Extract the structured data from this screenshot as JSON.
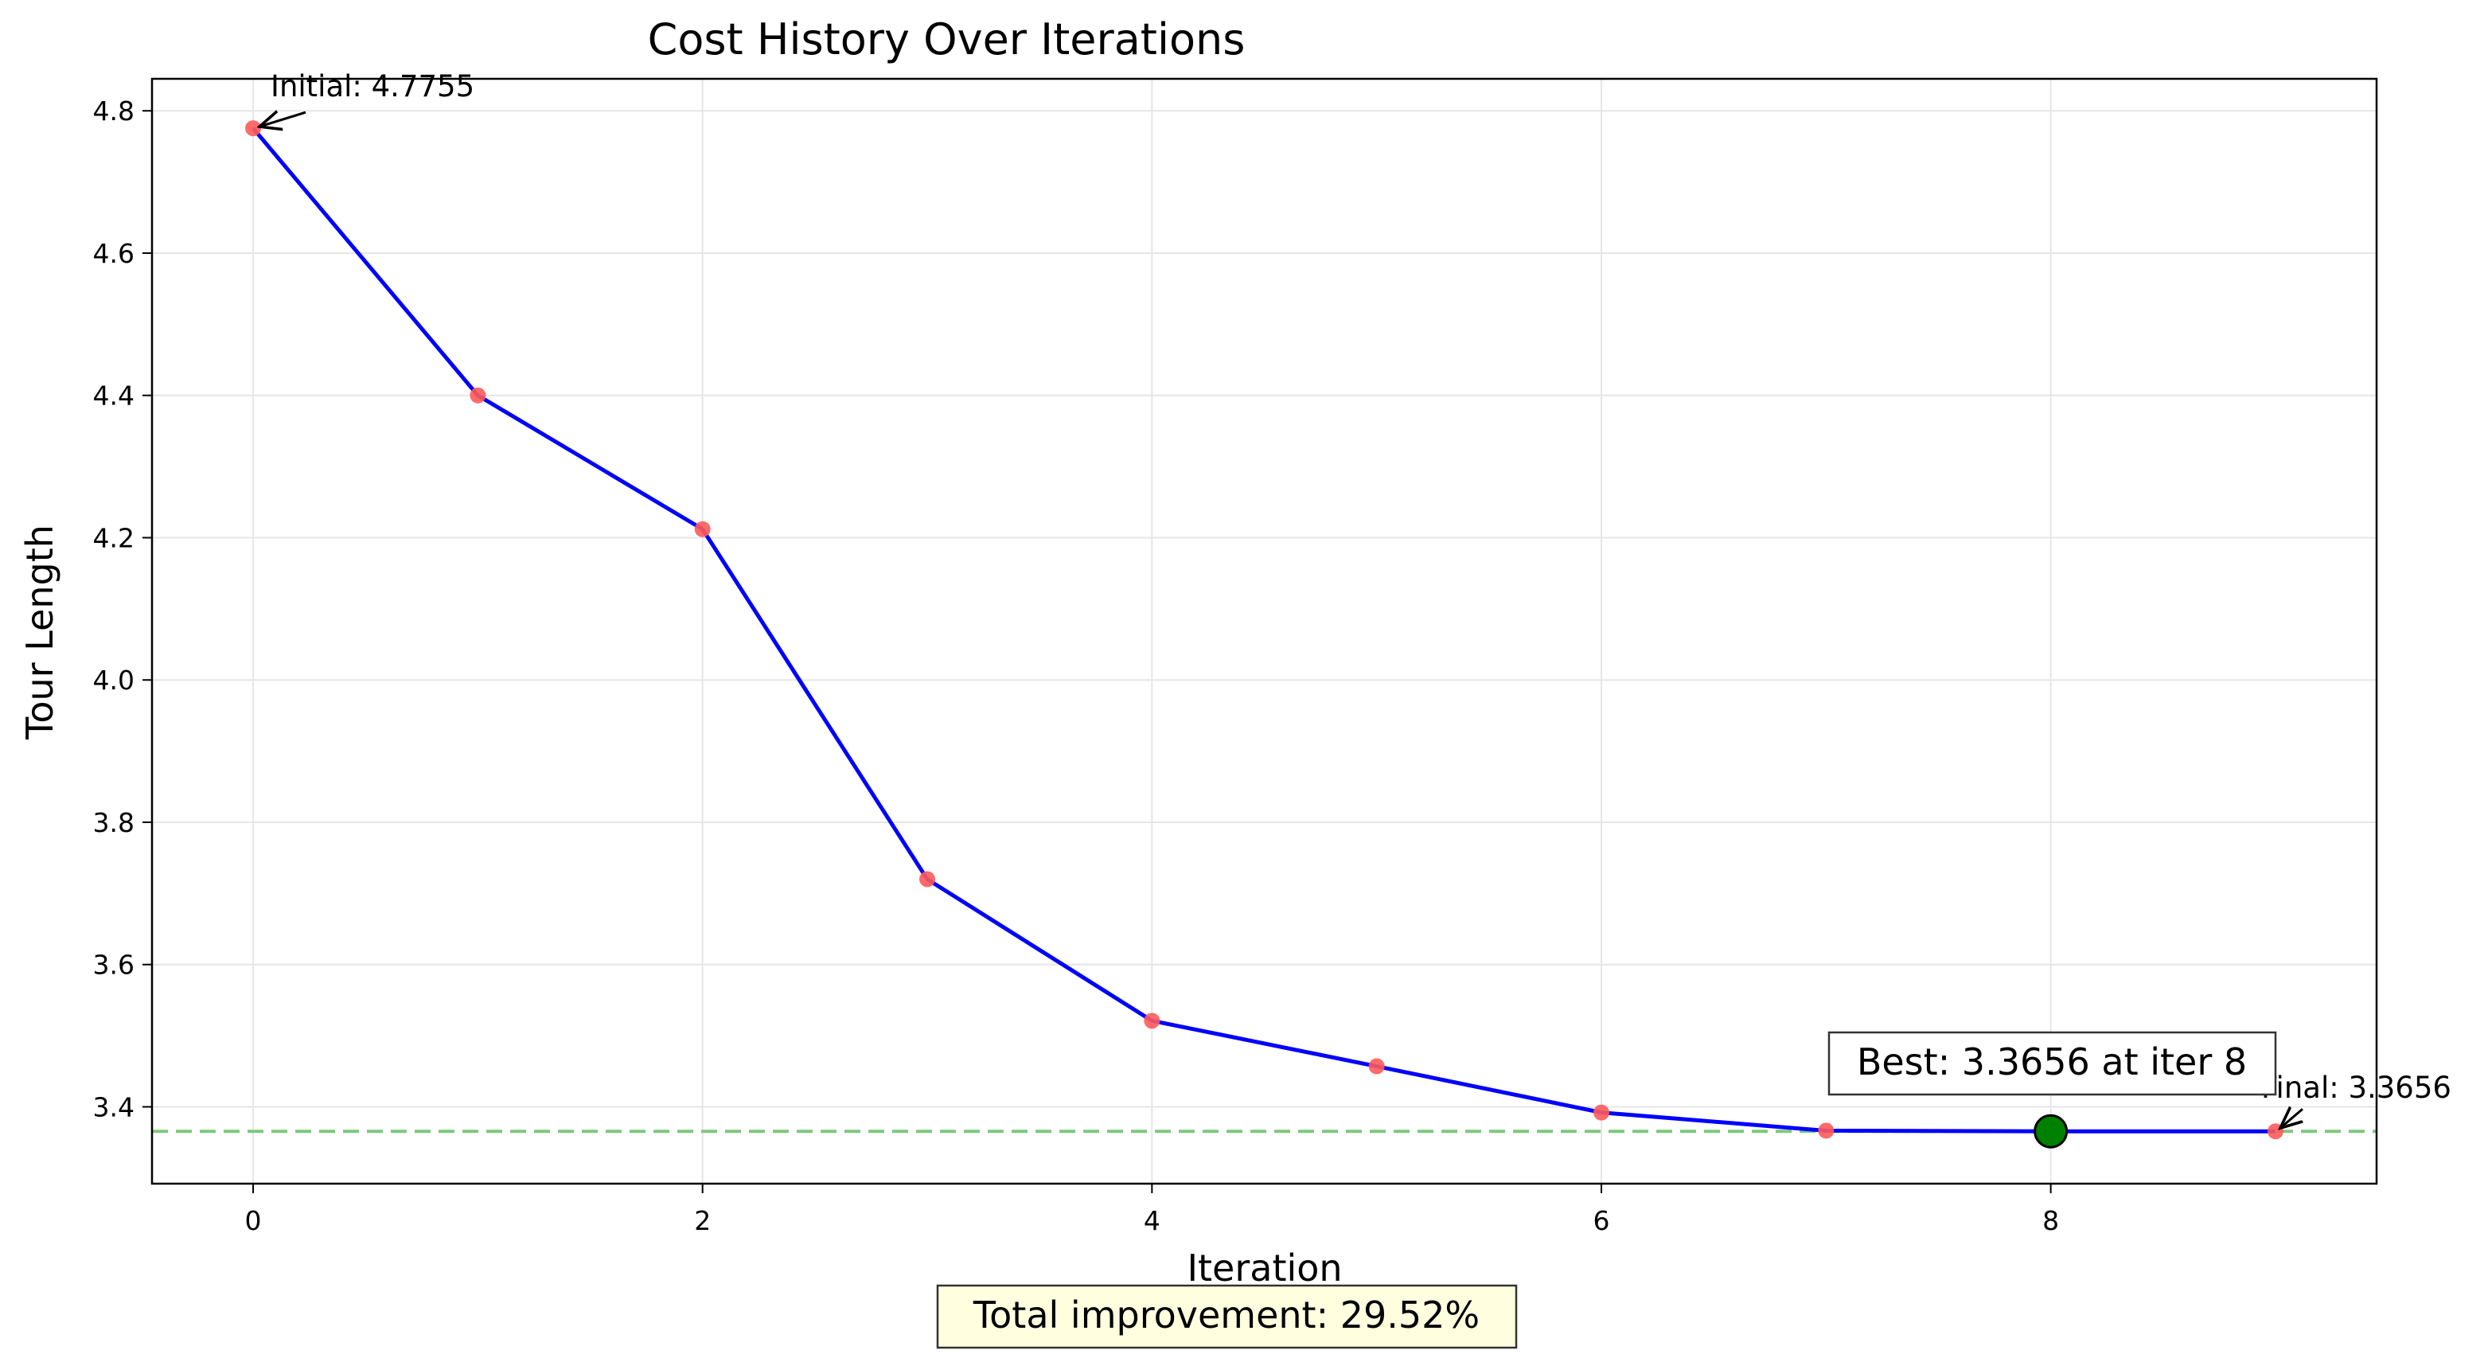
{
  "chart_data": {
    "type": "line",
    "title": "Cost History Over Iterations",
    "xlabel": "Iteration",
    "ylabel": "Tour Length",
    "xlim": [
      -0.45,
      9.45
    ],
    "ylim": [
      3.292,
      4.845
    ],
    "xticks": [
      0,
      2,
      4,
      6,
      8
    ],
    "yticks": [
      3.4,
      3.6,
      3.8,
      4.0,
      4.2,
      4.4,
      4.6,
      4.8
    ],
    "grid": true,
    "x": [
      0,
      1,
      2,
      3,
      4,
      5,
      6,
      7,
      8,
      9
    ],
    "values": [
      4.7755,
      4.4,
      4.212,
      3.72,
      3.521,
      3.457,
      3.392,
      3.3665,
      3.3656,
      3.3656
    ],
    "line_color": "#0000ff",
    "marker_color": "#ff5a5a",
    "reference_line": {
      "y": 3.3656,
      "color": "#7dc87d"
    },
    "best_point": {
      "x": 8,
      "y": 3.3656,
      "color": "#008000"
    },
    "annotations": {
      "initial": {
        "text": "Initial: 4.7755",
        "x": 0,
        "y": 4.7755
      },
      "final": {
        "text": "Final: 3.3656",
        "x": 9,
        "y": 3.3656
      },
      "best": {
        "text": "Best: 3.3656 at iter 8"
      }
    },
    "footer_box": {
      "text": "Total improvement: 29.52%",
      "fill": "#ffffe0"
    }
  }
}
